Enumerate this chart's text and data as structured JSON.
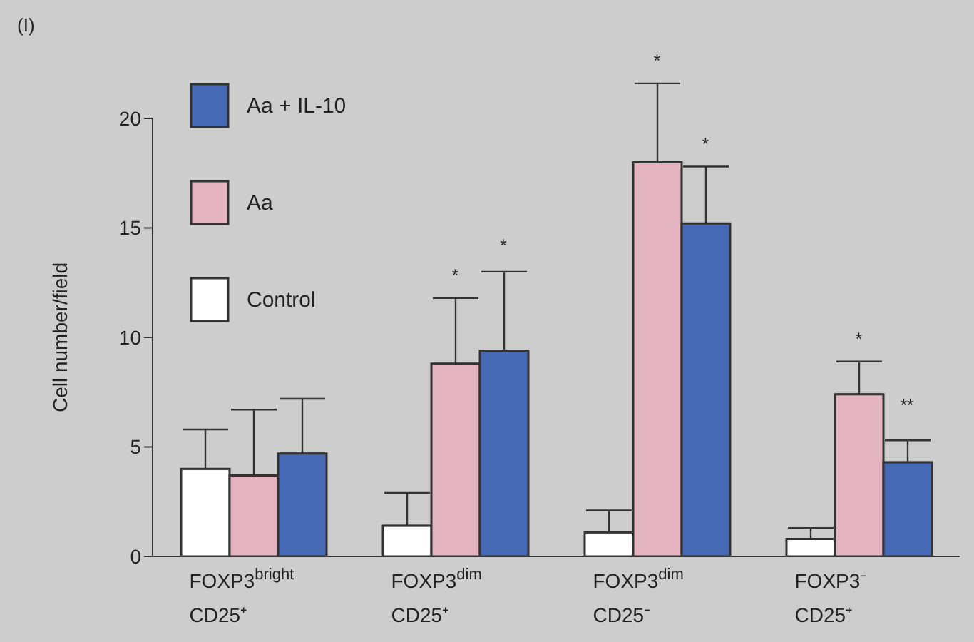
{
  "chart_data": {
    "type": "bar",
    "title": "(I)",
    "ylabel": "Cell number/field",
    "categories": [
      "FOXP3$^{bright}$\nCD25⁺",
      "FOXP3$^{dim}$\nCD25⁺",
      "FOXP3$^{dim}$\nCD25⁻",
      "FOXP3⁻\nCD25⁺"
    ],
    "series": [
      {
        "name": "Control",
        "color": "#ffffff",
        "values": [
          4.0,
          1.4,
          1.1,
          0.8
        ],
        "errors": [
          [
            4.0,
            5.8
          ],
          [
            1.4,
            2.9
          ],
          [
            1.1,
            2.1
          ],
          [
            0.8,
            1.3
          ]
        ]
      },
      {
        "name": "Aa",
        "color": "#e3b3c0",
        "values": [
          3.7,
          8.8,
          18.0,
          7.4
        ],
        "errors": [
          [
            3.7,
            6.7
          ],
          [
            8.8,
            11.8
          ],
          [
            18.0,
            21.6
          ],
          [
            7.4,
            8.9
          ]
        ]
      },
      {
        "name": "Aa + IL-10",
        "color": "#4569b5",
        "values": [
          4.7,
          9.4,
          15.2,
          4.3
        ],
        "errors": [
          [
            4.7,
            7.2
          ],
          [
            9.4,
            13.0
          ],
          [
            15.2,
            17.8
          ],
          [
            4.3,
            5.3
          ]
        ]
      }
    ],
    "annotations": [
      {
        "text": "*",
        "x": "FOXP3$^{dim}$\nCD25⁺",
        "y": 11.8
      },
      "*",
      {
        "text": "*",
        "x": "FOXP3$^{dim}$\nCD25⁻",
        "y": 21.6
      },
      {
        "text": "*",
        "x": "FOXP3$^{dim}$\nCD25⁻",
        "y": 17.8
      },
      {
        "text": "*",
        "x": "FOXP3⁻\nCD25⁺",
        "y": 8.9
      },
      "**"
    ],
    "ylim": [
      0,
      20
    ],
    "yticks": [
      0,
      5,
      10,
      15,
      20
    ],
    "legend": "top left"
  }
}
